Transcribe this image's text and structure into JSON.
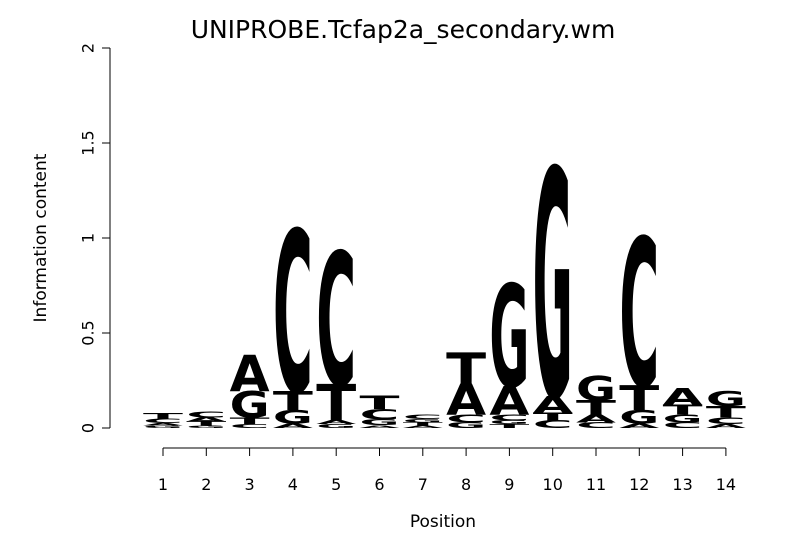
{
  "chart_data": {
    "type": "sequence-logo",
    "title": "UNIPROBE.Tcfap2a_secondary.wm",
    "xlabel": "Position",
    "ylabel": "Information content",
    "ylim": [
      0,
      2
    ],
    "y_ticks": [
      "0",
      "0.5",
      "1",
      "1.5",
      "2"
    ],
    "y_tick_values": [
      0,
      0.5,
      1,
      1.5,
      2
    ],
    "x_ticks": [
      "1",
      "2",
      "3",
      "4",
      "5",
      "6",
      "7",
      "8",
      "9",
      "10",
      "11",
      "12",
      "13",
      "14"
    ],
    "colors": {
      "A": "#00cc00",
      "C": "#0000ee",
      "G": "#ffa500",
      "T": "#ff0000"
    },
    "positions": [
      {
        "pos": 1,
        "stack": [
          [
            "G",
            0.012
          ],
          [
            "A",
            0.014
          ],
          [
            "C",
            0.022
          ],
          [
            "T",
            0.03
          ]
        ]
      },
      {
        "pos": 2,
        "stack": [
          [
            "G",
            0.012
          ],
          [
            "T",
            0.022
          ],
          [
            "A",
            0.022
          ],
          [
            "C",
            0.03
          ]
        ]
      },
      {
        "pos": 3,
        "stack": [
          [
            "C",
            0.02
          ],
          [
            "T",
            0.035
          ],
          [
            "G",
            0.14
          ],
          [
            "A",
            0.19
          ]
        ]
      },
      {
        "pos": 4,
        "stack": [
          [
            "A",
            0.025
          ],
          [
            "G",
            0.07
          ],
          [
            "T",
            0.1
          ],
          [
            "C",
            0.85
          ]
        ]
      },
      {
        "pos": 5,
        "stack": [
          [
            "G",
            0.02
          ],
          [
            "A",
            0.02
          ],
          [
            "T",
            0.19
          ],
          [
            "C",
            0.7
          ]
        ]
      },
      {
        "pos": 6,
        "stack": [
          [
            "A",
            0.015
          ],
          [
            "G",
            0.03
          ],
          [
            "C",
            0.055
          ],
          [
            "T",
            0.07
          ]
        ]
      },
      {
        "pos": 7,
        "stack": [
          [
            "A",
            0.012
          ],
          [
            "T",
            0.018
          ],
          [
            "G",
            0.018
          ],
          [
            "C",
            0.022
          ]
        ]
      },
      {
        "pos": 8,
        "stack": [
          [
            "G",
            0.03
          ],
          [
            "C",
            0.04
          ],
          [
            "A",
            0.165
          ],
          [
            "T",
            0.165
          ]
        ]
      },
      {
        "pos": 9,
        "stack": [
          [
            "T",
            0.02
          ],
          [
            "G",
            0.02
          ],
          [
            "C",
            0.03
          ],
          [
            "A",
            0.15
          ],
          [
            "G",
            0.54
          ]
        ]
      },
      {
        "pos": 10,
        "stack": [
          [
            "C",
            0.04
          ],
          [
            "T",
            0.04
          ],
          [
            "A",
            0.09
          ],
          [
            "G",
            1.2
          ]
        ]
      },
      {
        "pos": 11,
        "stack": [
          [
            "C",
            0.03
          ],
          [
            "A",
            0.04
          ],
          [
            "T",
            0.075
          ],
          [
            "G",
            0.13
          ]
        ]
      },
      {
        "pos": 12,
        "stack": [
          [
            "A",
            0.025
          ],
          [
            "G",
            0.07
          ],
          [
            "T",
            0.13
          ],
          [
            "C",
            0.78
          ]
        ]
      },
      {
        "pos": 13,
        "stack": [
          [
            "C",
            0.03
          ],
          [
            "G",
            0.04
          ],
          [
            "T",
            0.05
          ],
          [
            "A",
            0.09
          ]
        ]
      },
      {
        "pos": 14,
        "stack": [
          [
            "A",
            0.02
          ],
          [
            "C",
            0.035
          ],
          [
            "T",
            0.06
          ],
          [
            "G",
            0.08
          ]
        ]
      }
    ]
  }
}
